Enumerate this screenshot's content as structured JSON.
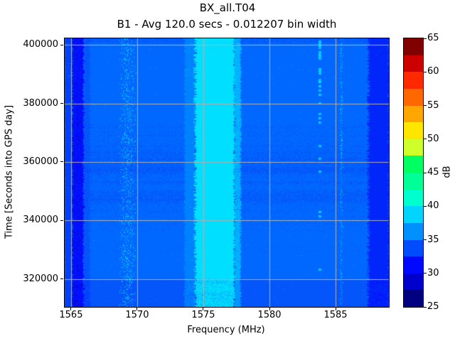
{
  "suptitle": "BX_all.T04",
  "title": "B1 - Avg 120.0 secs - 0.012207 bin width",
  "chart_data": {
    "type": "heatmap",
    "xlabel": "Frequency (MHz)",
    "ylabel": "Time [Seconds into GPS day]",
    "colorbar_label": "dB",
    "x_range": [
      1564.52,
      1589.03
    ],
    "y_range": [
      310500,
      402200
    ],
    "value_range": [
      25,
      65
    ],
    "xticks": [
      1565,
      1570,
      1575,
      1580,
      1585
    ],
    "yticks": [
      320000,
      340000,
      360000,
      380000,
      400000
    ],
    "colorbar_ticks": [
      65,
      60,
      55,
      50,
      45,
      40,
      35,
      30,
      25
    ],
    "grid": true,
    "grid_color": "#b0b0b0",
    "colorbar_levels_top_to_bottom": [
      "#800000",
      "#cd0000",
      "#ff2900",
      "#ff6800",
      "#ffa700",
      "#ffe600",
      "#ceff29",
      "#00ff60",
      "#00ff97",
      "#00ffce",
      "#00d4ff",
      "#0091ff",
      "#004dff",
      "#0008ff",
      "#0000cd",
      "#000080"
    ],
    "background_db": 35.3,
    "palette": [
      {
        "db": 25,
        "color": "#000082"
      },
      {
        "db": 27,
        "color": "#0000b2"
      },
      {
        "db": 28.5,
        "color": "#0000e0"
      },
      {
        "db": 30,
        "color": "#0110ff"
      },
      {
        "db": 31.25,
        "color": "#0126fa"
      },
      {
        "db": 32.5,
        "color": "#0340fb"
      },
      {
        "db": 33.75,
        "color": "#0456fa"
      },
      {
        "db": 35,
        "color": "#0068ff"
      },
      {
        "db": 36.25,
        "color": "#0081ff"
      },
      {
        "db": 37.25,
        "color": "#0098ff"
      },
      {
        "db": 38.25,
        "color": "#00b5ff"
      },
      {
        "db": 39,
        "color": "#00dfff"
      },
      {
        "db": 41,
        "color": "#00eaff"
      },
      {
        "db": 42.5,
        "color": "#2affd5"
      }
    ],
    "features": [
      {
        "name": "left-edge-band",
        "kind": "band",
        "freq": [
          1564.52,
          1565.05
        ],
        "db": 33.4,
        "jitter": 1
      },
      {
        "name": "dark-stripe-1565.5",
        "kind": "band",
        "freq": [
          1565.05,
          1565.95
        ],
        "db": 30.9,
        "jitter": 2,
        "fleck_prob": 0.07,
        "fleck_db": -3.4
      },
      {
        "name": "stripe-shoulder",
        "kind": "band",
        "freq": [
          1565.95,
          1566.4
        ],
        "db": 34.1,
        "jitter": 2
      },
      {
        "name": "speckle-column-1569",
        "kind": "speckle",
        "freq": [
          1568.55,
          1569.95
        ],
        "delta_db": 3.6,
        "density": 0.2
      },
      {
        "name": "l1-edge-left",
        "kind": "band",
        "freq": [
          1573.55,
          1574.35
        ],
        "db": 36.9,
        "jitter": 1.5
      },
      {
        "name": "l1-cyan-core",
        "kind": "band",
        "freq": [
          1574.35,
          1577.35
        ],
        "db": 39.6,
        "jitter": 2.5
      },
      {
        "name": "l1-edge-right",
        "kind": "band",
        "freq": [
          1577.35,
          1577.8
        ],
        "db": 38.4,
        "jitter": 1.5
      },
      {
        "name": "narrow-line-1583.8",
        "kind": "line",
        "freq": [
          1583.68,
          1583.9
        ],
        "db": 38.3
      },
      {
        "name": "dotted-line-1585.4",
        "kind": "speckle",
        "freq": [
          1585.28,
          1585.55
        ],
        "delta_db": 2.8,
        "density": 0.3
      },
      {
        "name": "right-dark-band",
        "kind": "band",
        "freq": [
          1587.45,
          1589.03
        ],
        "db": 31.9,
        "jitter": 2.5
      }
    ],
    "row_bands": [
      {
        "name": "top-darker",
        "t_min": 400600,
        "t_max": 402200,
        "delta": -0.7
      },
      {
        "name": "bottom-darker",
        "t_min": 310500,
        "t_max": 320300,
        "delta": -1.1
      }
    ]
  }
}
